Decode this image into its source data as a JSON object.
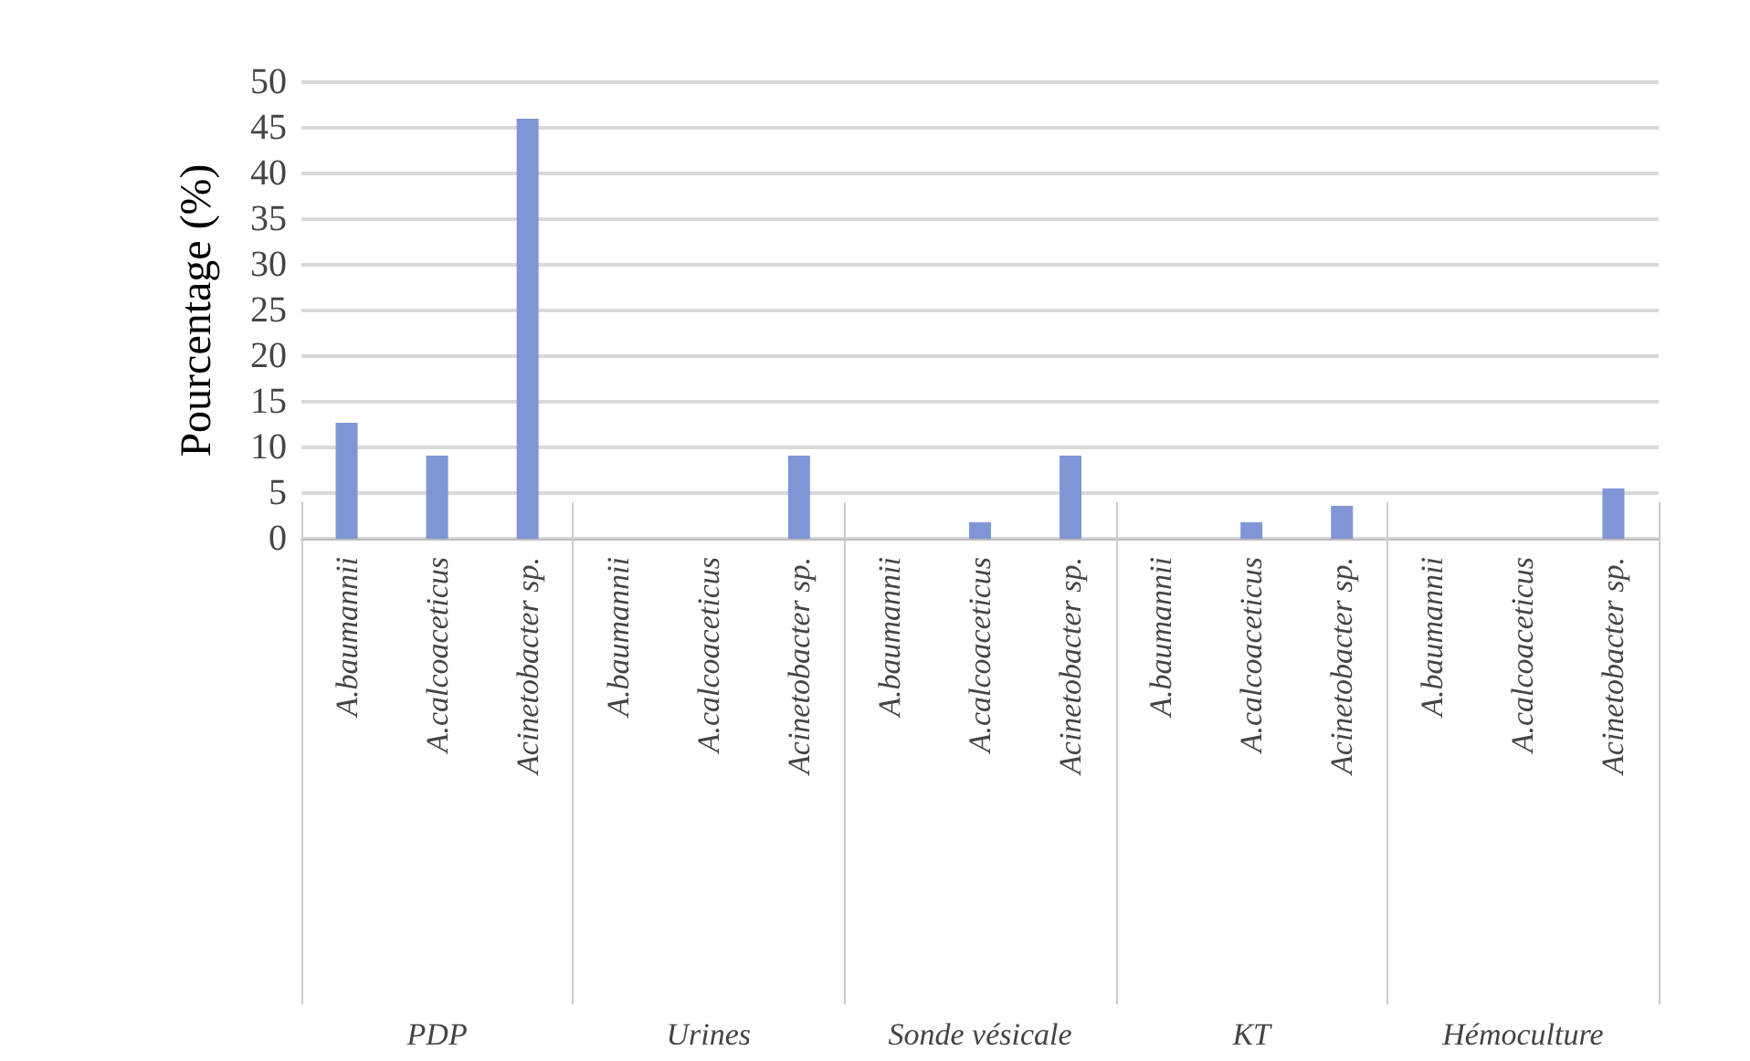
{
  "chart_data": {
    "type": "bar",
    "ylabel": "Pourcentage (%)",
    "categories": [
      "A.baumannii",
      "A.calcoaceticus",
      "Acinetobacter sp.",
      "A.baumannii",
      "A.calcoaceticus",
      "Acinetobacter sp.",
      "A.baumannii",
      "A.calcoaceticus",
      "Acinetobacter sp.",
      "A.baumannii",
      "A.calcoaceticus",
      "Acinetobacter sp.",
      "A.baumannii",
      "A.calcoaceticus",
      "Acinetobacter sp."
    ],
    "values": [
      12.7,
      9.1,
      46,
      0,
      0,
      9.1,
      0,
      1.8,
      9.1,
      0,
      1.8,
      3.6,
      0,
      0,
      5.5
    ],
    "color": "#7f96d6",
    "annotations": [
      "PDP",
      "Urines",
      "Sonde vésicale",
      "KT",
      "Hémoculture"
    ],
    "ylim": [
      0,
      50
    ],
    "yticks": [
      0,
      5,
      10,
      15,
      20,
      25,
      30,
      35,
      40,
      45,
      50
    ],
    "grid": "y"
  }
}
